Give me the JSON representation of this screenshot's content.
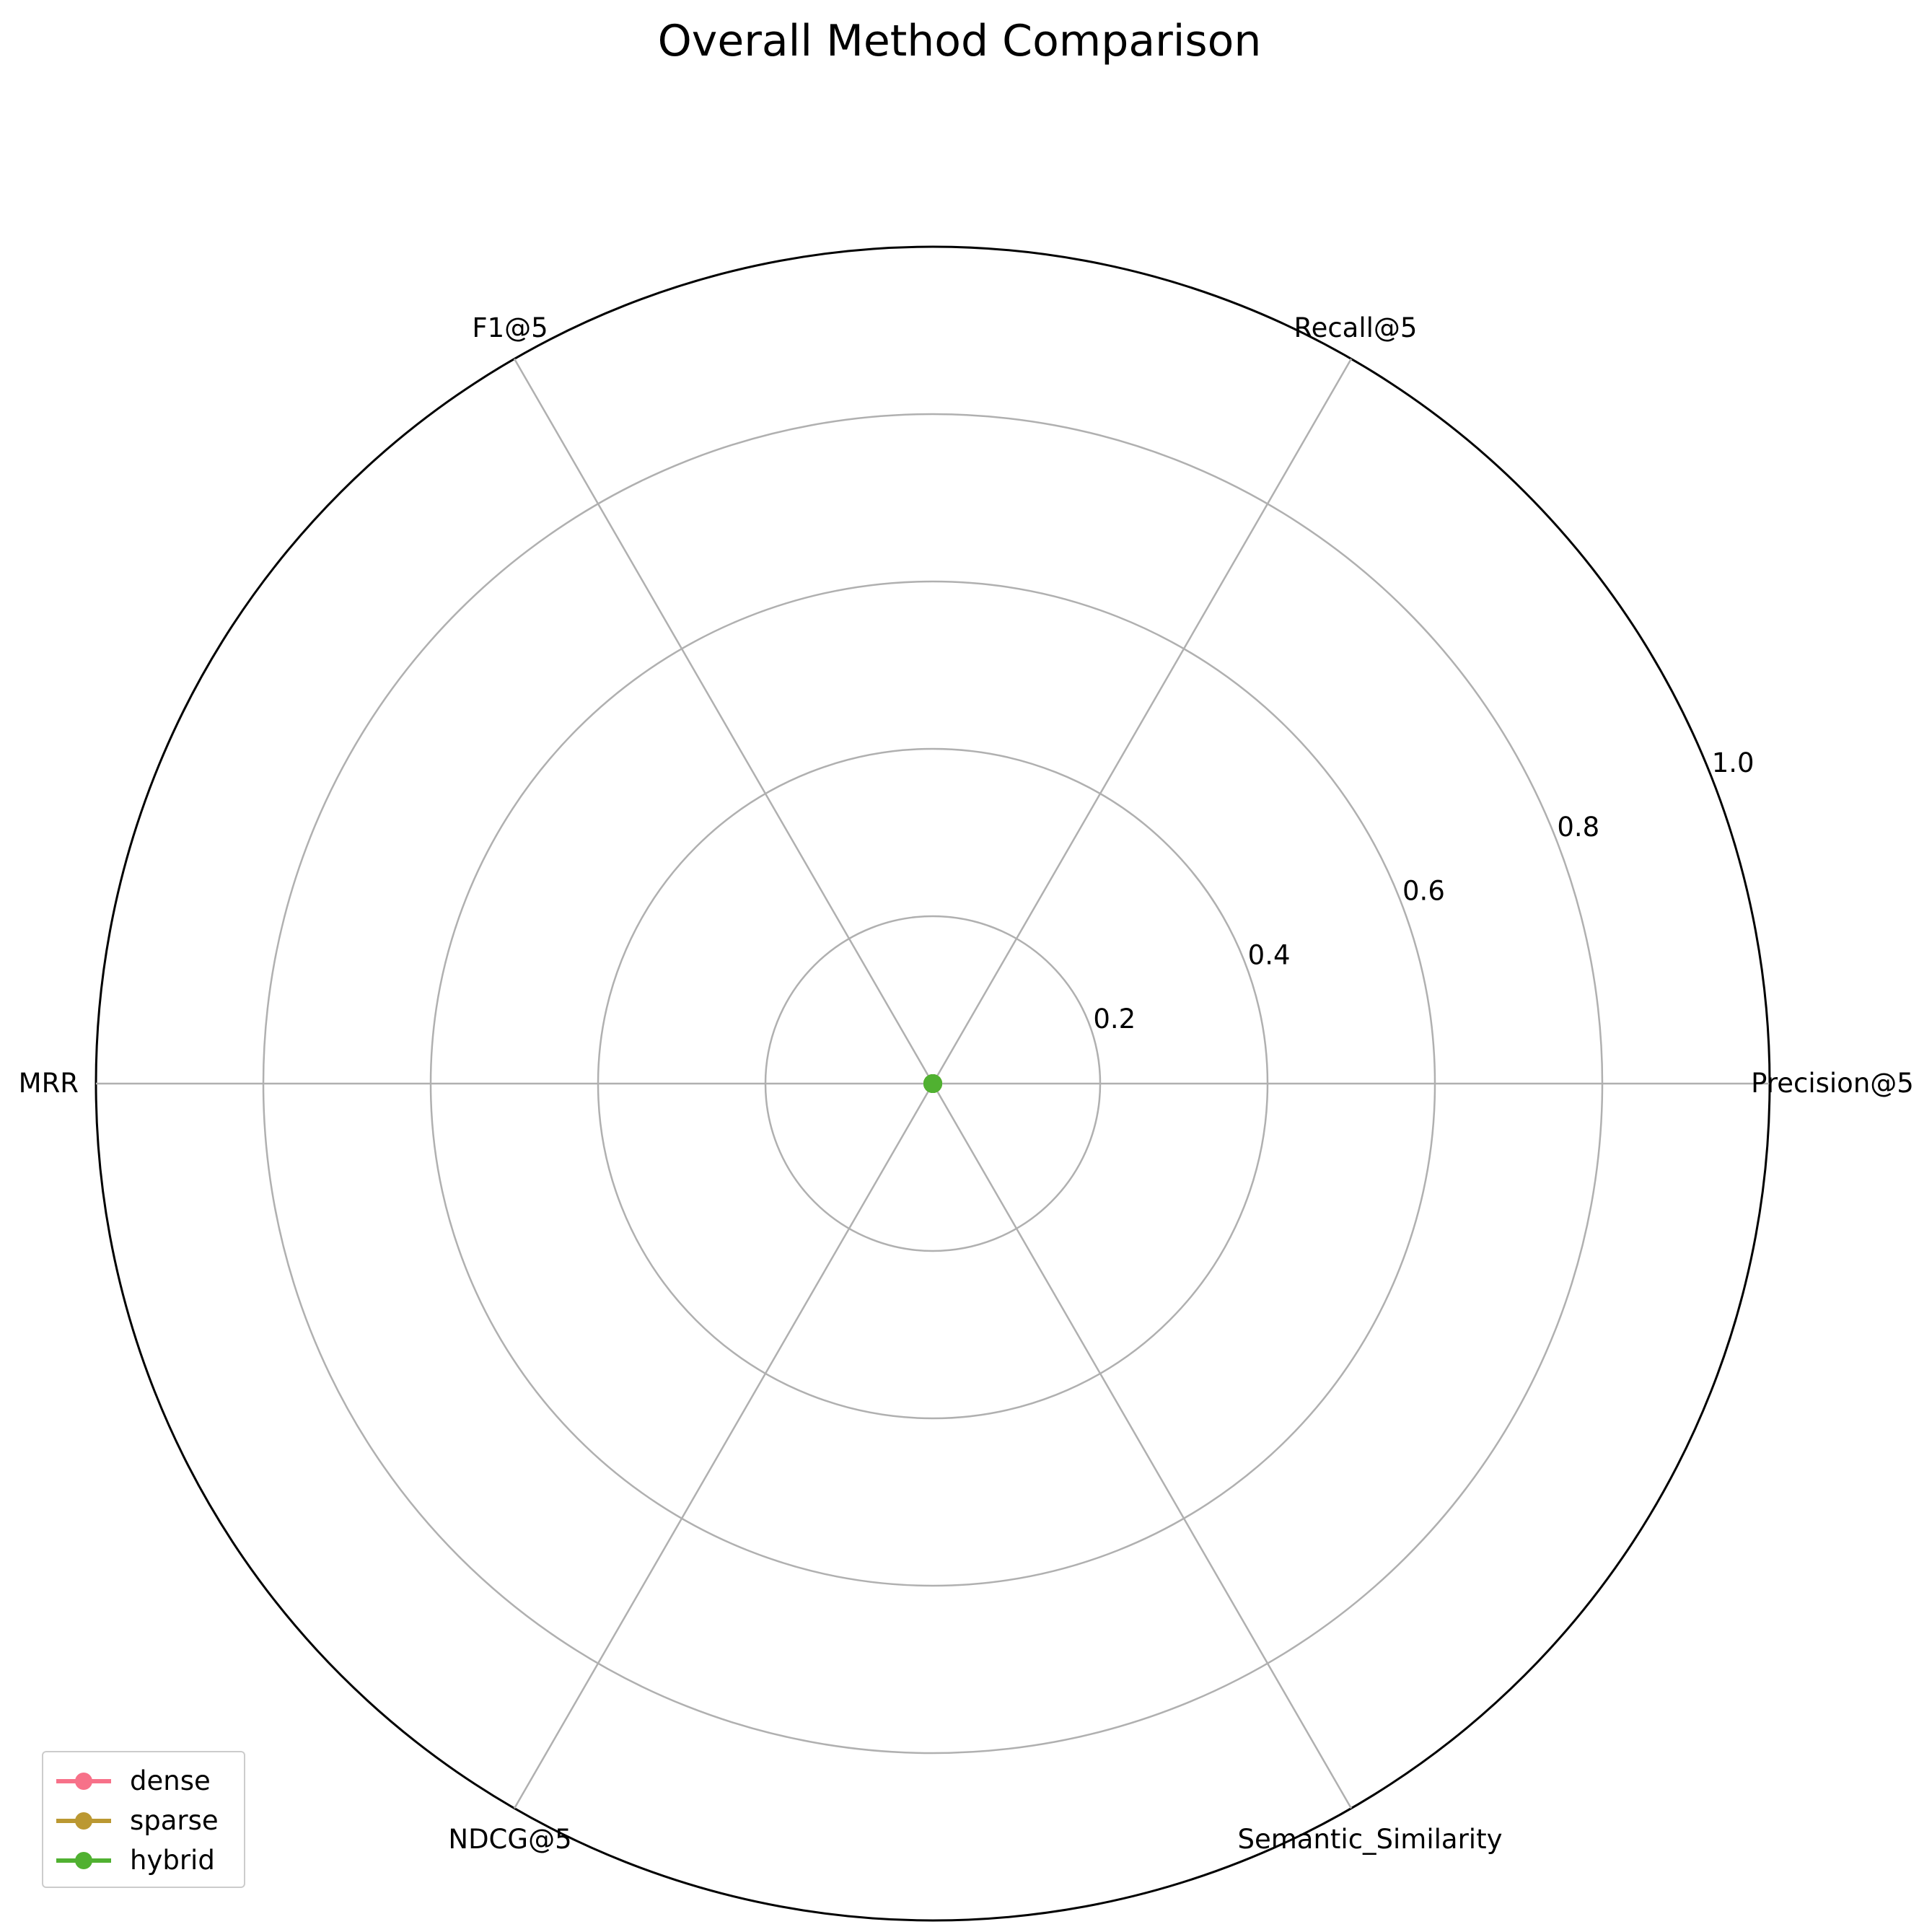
{
  "chart_data": {
    "type": "radar",
    "title": "Overall Method Comparison",
    "axes": [
      "Precision@5",
      "Recall@5",
      "F1@5",
      "MRR",
      "NDCG@5",
      "Semantic_Similarity"
    ],
    "rlim": [
      0,
      1.0
    ],
    "rticks": [
      "0.2",
      "0.4",
      "0.6",
      "0.8",
      "1.0"
    ],
    "grid": true,
    "legend_position": "lower-left",
    "series": [
      {
        "name": "dense",
        "color": "#f77189",
        "values": [
          0,
          0,
          0,
          0,
          0,
          0
        ]
      },
      {
        "name": "sparse",
        "color": "#bb9832",
        "values": [
          0,
          0,
          0,
          0,
          0,
          0
        ]
      },
      {
        "name": "hybrid",
        "color": "#50b131",
        "values": [
          0,
          0,
          0,
          0,
          0,
          0
        ]
      }
    ]
  }
}
